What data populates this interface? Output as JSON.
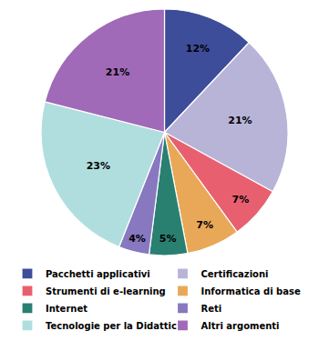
{
  "chart_data": {
    "type": "pie",
    "categories": [
      "Pacchetti applicativi",
      "Certificazioni",
      "Strumenti di e-learning",
      "Informatica di base",
      "Internet",
      "Reti",
      "Tecnologie per la Didattica",
      "Altri argomenti"
    ],
    "values": [
      12,
      21,
      7,
      7,
      5,
      4,
      23,
      21
    ],
    "value_labels": [
      "12%",
      "21%",
      "7%",
      "7%",
      "5%",
      "4%",
      "23%",
      "21%"
    ],
    "colors": [
      "#3d4d9a",
      "#b8b4d8",
      "#e86070",
      "#e8a858",
      "#2a8070",
      "#8878c0",
      "#b0dede",
      "#a06ab8"
    ],
    "data_labels": true,
    "legend": "bottom"
  }
}
